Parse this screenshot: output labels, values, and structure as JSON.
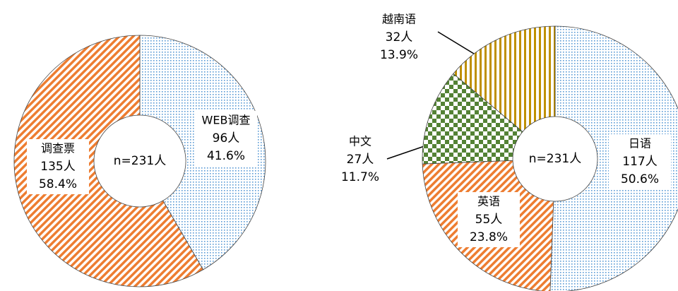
{
  "chart_data": [
    {
      "type": "donut",
      "center_label": "n=231人",
      "categories": [
        "WEB调查",
        "调查票"
      ],
      "values": [
        41.6,
        58.4
      ],
      "value_labels": [
        "41.6%",
        "58.4%"
      ],
      "counts": [
        "96人",
        "135人"
      ],
      "colors": [
        "#5b9bd5",
        "#ed7d31"
      ]
    },
    {
      "type": "donut",
      "center_label": "n=231人",
      "categories": [
        "日语",
        "英语",
        "中文",
        "越南语"
      ],
      "values": [
        50.6,
        23.8,
        11.7,
        13.9
      ],
      "value_labels": [
        "50.6%",
        "23.8%",
        "11.7%",
        "13.9%"
      ],
      "counts": [
        "117人",
        "55人",
        "27人",
        "32人"
      ],
      "colors": [
        "#5b9bd5",
        "#ed7d31",
        "#548235",
        "#bf9000"
      ]
    }
  ]
}
